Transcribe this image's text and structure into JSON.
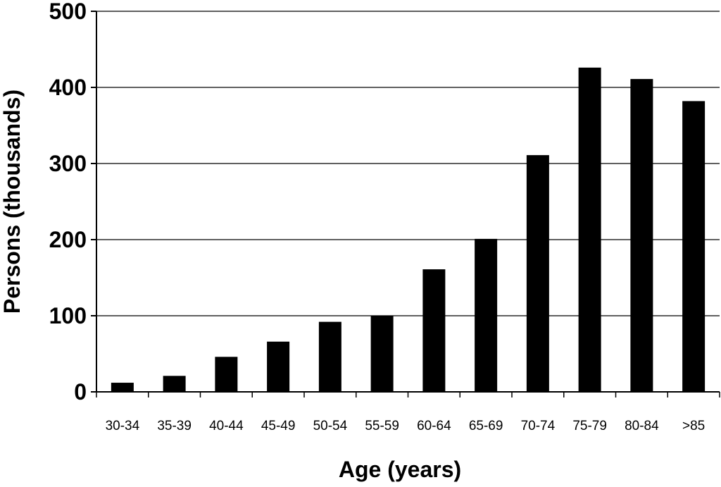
{
  "chart_data": {
    "type": "bar",
    "title": "",
    "xlabel": "Age (years)",
    "ylabel": "Persons (thousands)",
    "categories": [
      "30-34",
      "35-39",
      "40-44",
      "45-49",
      "50-54",
      "55-59",
      "60-64",
      "65-69",
      "70-74",
      "75-79",
      "80-84",
      ">85"
    ],
    "values": [
      12,
      21,
      46,
      66,
      92,
      100,
      161,
      201,
      311,
      426,
      411,
      382
    ],
    "ylim": [
      0,
      500
    ],
    "yticks": [
      0,
      100,
      200,
      300,
      400,
      500
    ],
    "grid": true,
    "bar_color": "#000000"
  }
}
